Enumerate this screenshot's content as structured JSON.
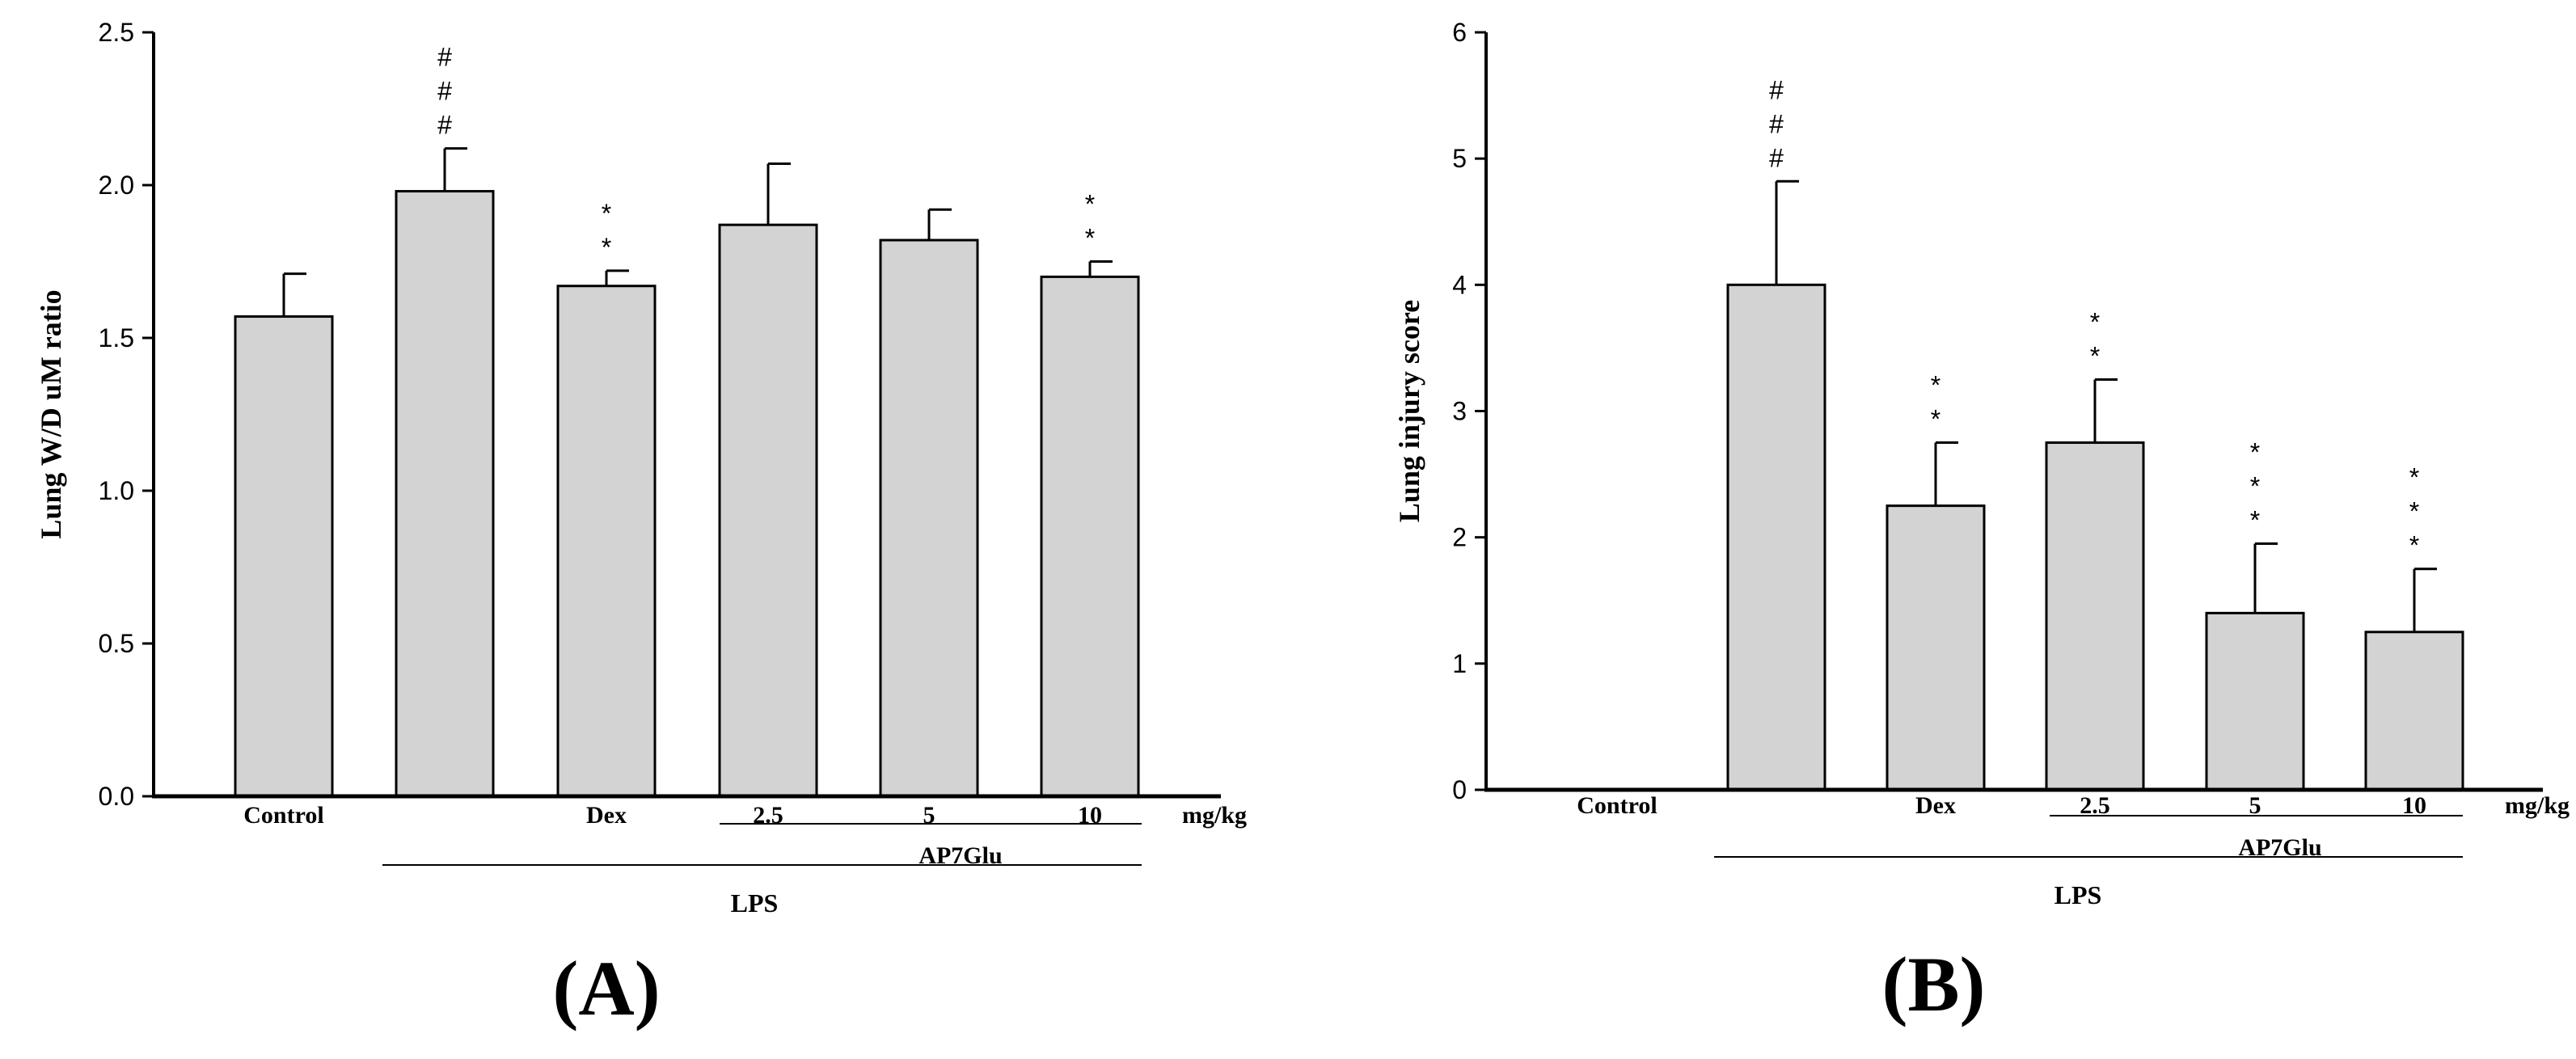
{
  "style": {
    "bar_fill": "#d3d3d3",
    "stroke": "#000000",
    "background": "#ffffff"
  },
  "chart_data": [
    {
      "type": "bar",
      "panel_label": "(A)",
      "ylabel": "Lung W/D uM ratio",
      "ylim": [
        0,
        2.5
      ],
      "yticks": [
        "0.0",
        "0.5",
        "1.0",
        "1.5",
        "2.0",
        "2.5"
      ],
      "tick_values": [
        0,
        0.5,
        1.0,
        1.5,
        2.0,
        2.5
      ],
      "categories": [
        "Control",
        "",
        "Dex",
        "2.5",
        "5",
        "10"
      ],
      "values": [
        1.57,
        1.98,
        1.67,
        1.87,
        1.82,
        1.7
      ],
      "errors": [
        0.14,
        0.14,
        0.05,
        0.2,
        0.1,
        0.05
      ],
      "annotations": [
        "",
        "###",
        "**",
        "",
        "",
        "**"
      ],
      "unit_label": "mg/kg",
      "group_labels": {
        "ap7glu": "AP7Glu",
        "lps": "LPS"
      },
      "grid": false,
      "legend": "none"
    },
    {
      "type": "bar",
      "panel_label": "(B)",
      "ylabel": "Lung injury score",
      "ylim": [
        0,
        6
      ],
      "yticks": [
        "0",
        "1",
        "2",
        "3",
        "4",
        "5",
        "6"
      ],
      "tick_values": [
        0,
        1,
        2,
        3,
        4,
        5,
        6
      ],
      "categories": [
        "Control",
        "",
        "Dex",
        "2.5",
        "5",
        "10"
      ],
      "values": [
        0,
        4.0,
        2.25,
        2.75,
        1.4,
        1.25
      ],
      "errors": [
        0,
        0.82,
        0.5,
        0.5,
        0.55,
        0.5
      ],
      "annotations": [
        "",
        "###",
        "**",
        "**",
        "***",
        "***"
      ],
      "unit_label": "mg/kg",
      "group_labels": {
        "ap7glu": "AP7Glu",
        "lps": "LPS"
      },
      "grid": false,
      "legend": "none"
    }
  ]
}
